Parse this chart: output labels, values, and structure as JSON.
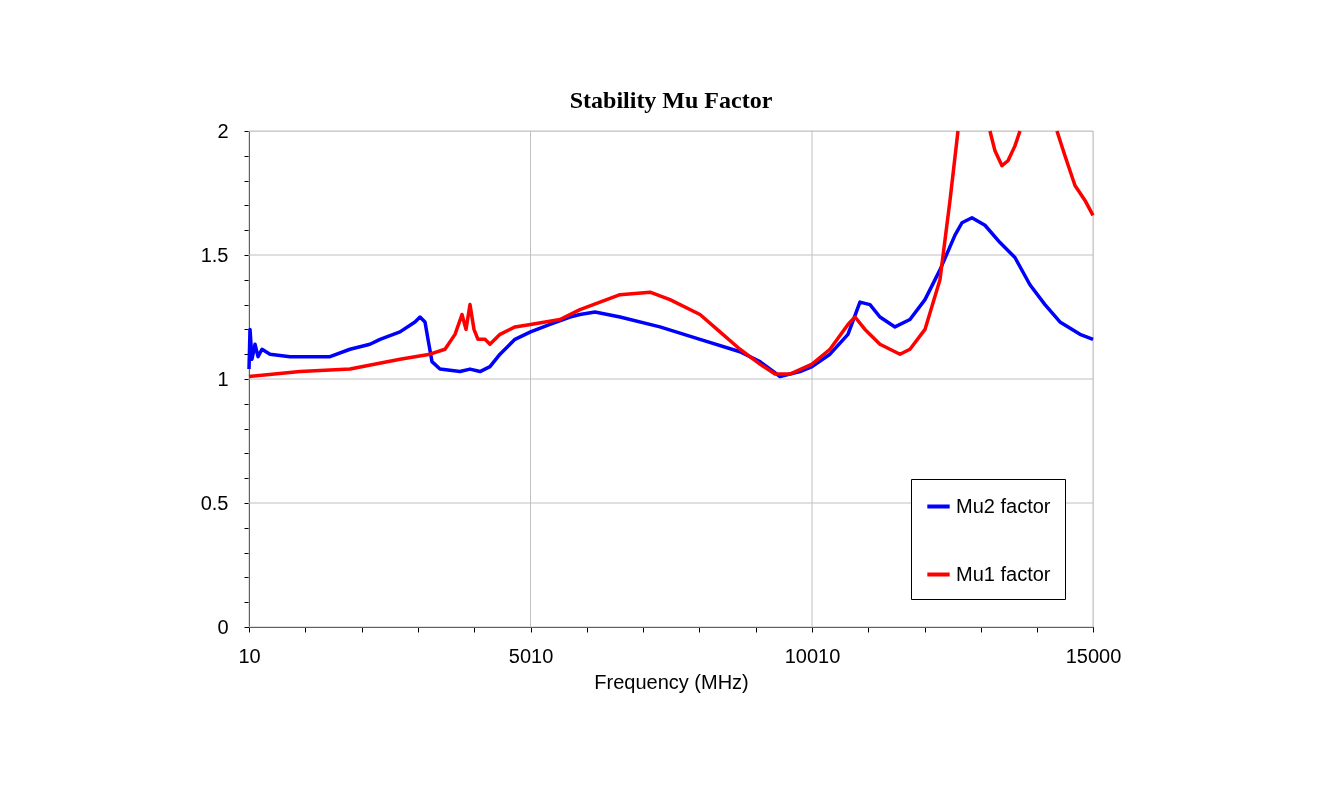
{
  "chart_data": {
    "type": "line",
    "title": "Stability Mu Factor",
    "xlabel": "Frequency (MHz)",
    "xlim": [
      10,
      15000
    ],
    "xticks": [
      10,
      {
        "value": 1010,
        "label": null
      },
      {
        "value": 2010,
        "label": null
      },
      {
        "value": 3010,
        "label": null
      },
      {
        "value": 4010,
        "label": null
      },
      5010,
      {
        "value": 6010,
        "label": null
      },
      {
        "value": 7010,
        "label": null
      },
      {
        "value": 8010,
        "label": null
      },
      {
        "value": 9010,
        "label": null
      },
      10010,
      {
        "value": 11010,
        "label": null
      },
      {
        "value": 12010,
        "label": null
      },
      {
        "value": 13010,
        "label": null
      },
      {
        "value": 14010,
        "label": null
      },
      15000
    ],
    "ylim": [
      0,
      2
    ],
    "yticks": [
      0,
      {
        "value": 0.1,
        "label": null
      },
      {
        "value": 0.2,
        "label": null
      },
      {
        "value": 0.3,
        "label": null
      },
      {
        "value": 0.4,
        "label": null
      },
      0.5,
      {
        "value": 0.6,
        "label": null
      },
      {
        "value": 0.7,
        "label": null
      },
      {
        "value": 0.8,
        "label": null
      },
      {
        "value": 0.9,
        "label": null
      },
      1,
      {
        "value": 1.1,
        "label": null
      },
      {
        "value": 1.2,
        "label": null
      },
      {
        "value": 1.3,
        "label": null
      },
      {
        "value": 1.4,
        "label": null
      },
      1.5,
      {
        "value": 1.6,
        "label": null
      },
      {
        "value": 1.7,
        "label": null
      },
      {
        "value": 1.8,
        "label": null
      },
      {
        "value": 1.9,
        "label": null
      },
      2
    ],
    "grid": true,
    "legend": "bottom right",
    "marker": "none",
    "line_style": "solid",
    "series": [
      {
        "name": "Mu2 factor",
        "color": "#0000ff",
        "x": [
          10,
          28,
          63,
          117,
          170,
          241,
          383,
          738,
          1093,
          1449,
          1804,
          2159,
          2337,
          2692,
          2958,
          3047,
          3136,
          3189,
          3260,
          3402,
          3757,
          3935,
          4113,
          4290,
          4468,
          4734,
          5010,
          5356,
          5711,
          5888,
          6155,
          6599,
          7309,
          8020,
          8730,
          9085,
          9441,
          9796,
          10010,
          10329,
          10648,
          10861,
          11039,
          11216,
          11483,
          11749,
          12016,
          12282,
          12549,
          12673,
          12850,
          13081,
          13348,
          13614,
          13880,
          14147,
          14413,
          14769,
          15000
        ],
        "values": [
          1.04,
          1.2,
          1.08,
          1.14,
          1.09,
          1.12,
          1.1,
          1.09,
          1.09,
          1.09,
          1.12,
          1.14,
          1.16,
          1.19,
          1.23,
          1.25,
          1.23,
          1.16,
          1.07,
          1.04,
          1.03,
          1.04,
          1.03,
          1.05,
          1.1,
          1.16,
          1.19,
          1.22,
          1.25,
          1.26,
          1.27,
          1.25,
          1.21,
          1.16,
          1.11,
          1.07,
          1.01,
          1.03,
          1.05,
          1.1,
          1.18,
          1.31,
          1.3,
          1.25,
          1.21,
          1.24,
          1.32,
          1.44,
          1.58,
          1.63,
          1.65,
          1.62,
          1.55,
          1.49,
          1.38,
          1.3,
          1.23,
          1.18,
          1.16
        ]
      },
      {
        "name": "Mu1 factor",
        "color": "#ff0000",
        "x": [
          10,
          916,
          1804,
          2692,
          3225,
          3491,
          3669,
          3793,
          3864,
          3935,
          4006,
          4077,
          4201,
          4290,
          4468,
          4734,
          5010,
          5533,
          5888,
          6244,
          6599,
          7132,
          7487,
          8020,
          8375,
          8730,
          9085,
          9352,
          9618,
          10010,
          10329,
          10648,
          10773,
          10950,
          11216,
          11572,
          11749,
          12016,
          12282,
          12460,
          12602,
          12904,
          13170,
          13259,
          13383,
          13490,
          13614,
          13703,
          14058,
          14360,
          14502,
          14680,
          14858,
          15000
        ],
        "values": [
          1.01,
          1.03,
          1.04,
          1.08,
          1.1,
          1.12,
          1.18,
          1.26,
          1.2,
          1.3,
          1.2,
          1.16,
          1.16,
          1.14,
          1.18,
          1.21,
          1.22,
          1.24,
          1.28,
          1.31,
          1.34,
          1.35,
          1.32,
          1.26,
          1.19,
          1.12,
          1.06,
          1.02,
          1.02,
          1.06,
          1.12,
          1.22,
          1.25,
          1.2,
          1.14,
          1.1,
          1.12,
          1.2,
          1.4,
          1.72,
          2,
          null,
          2,
          1.92,
          1.86,
          1.88,
          1.94,
          2,
          null,
          2,
          1.9,
          1.78,
          1.72,
          1.66
        ]
      }
    ]
  }
}
